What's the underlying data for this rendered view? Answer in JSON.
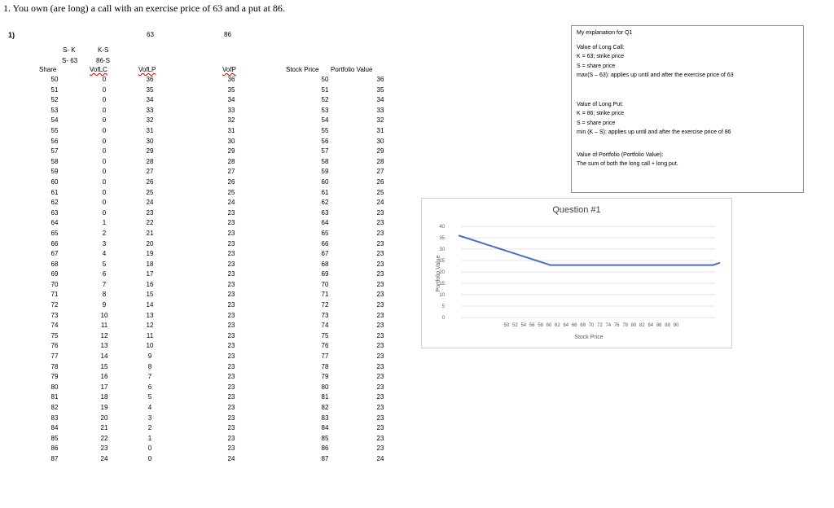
{
  "header": {
    "title": "1. You own (are long) a call with an exercise price of 63 and a put at 86."
  },
  "question_number": "1)",
  "top_values": {
    "call_strike": "63",
    "put_strike": "86"
  },
  "columns": {
    "share": "Share",
    "sk_line1": "S- K",
    "sk_line2": "S- 63",
    "ks_line1": "K-S",
    "ks_line2": "86-S",
    "volc": "VofLC",
    "volp": "VofLP",
    "vofp": "VofP",
    "stock_price": "Stock Price",
    "portfolio_value": "Portfolio Value"
  },
  "table": {
    "share": [
      "50",
      "51",
      "52",
      "53",
      "54",
      "55",
      "56",
      "57",
      "58",
      "59",
      "60",
      "61",
      "62",
      "63",
      "64",
      "65",
      "66",
      "67",
      "68",
      "69",
      "70",
      "71",
      "72",
      "73",
      "74",
      "75",
      "76",
      "77",
      "78",
      "79",
      "80",
      "81",
      "82",
      "83",
      "84",
      "85",
      "86",
      "87"
    ],
    "volc": [
      "0",
      "0",
      "0",
      "0",
      "0",
      "0",
      "0",
      "0",
      "0",
      "0",
      "0",
      "0",
      "0",
      "0",
      "1",
      "2",
      "3",
      "4",
      "5",
      "6",
      "7",
      "8",
      "9",
      "10",
      "11",
      "12",
      "13",
      "14",
      "15",
      "16",
      "17",
      "18",
      "19",
      "20",
      "21",
      "22",
      "23",
      "24"
    ],
    "volp": [
      "36",
      "35",
      "34",
      "33",
      "32",
      "31",
      "30",
      "29",
      "28",
      "27",
      "26",
      "25",
      "24",
      "23",
      "22",
      "21",
      "20",
      "19",
      "18",
      "17",
      "16",
      "15",
      "14",
      "13",
      "12",
      "11",
      "10",
      "9",
      "8",
      "7",
      "6",
      "5",
      "4",
      "3",
      "2",
      "1",
      "0",
      "0"
    ],
    "vofp": [
      "36",
      "35",
      "34",
      "33",
      "32",
      "31",
      "30",
      "29",
      "28",
      "27",
      "26",
      "25",
      "24",
      "23",
      "23",
      "23",
      "23",
      "23",
      "23",
      "23",
      "23",
      "23",
      "23",
      "23",
      "23",
      "23",
      "23",
      "23",
      "23",
      "23",
      "23",
      "23",
      "23",
      "23",
      "23",
      "23",
      "23",
      "24"
    ],
    "stock_price": [
      "50",
      "51",
      "52",
      "53",
      "54",
      "55",
      "56",
      "57",
      "58",
      "59",
      "60",
      "61",
      "62",
      "63",
      "64",
      "65",
      "66",
      "67",
      "68",
      "69",
      "70",
      "71",
      "72",
      "73",
      "74",
      "75",
      "76",
      "77",
      "78",
      "79",
      "80",
      "81",
      "82",
      "83",
      "84",
      "85",
      "86",
      "87"
    ],
    "portfolio_value": [
      "36",
      "35",
      "34",
      "33",
      "32",
      "31",
      "30",
      "29",
      "28",
      "27",
      "26",
      "25",
      "24",
      "23",
      "23",
      "23",
      "23",
      "23",
      "23",
      "23",
      "23",
      "23",
      "23",
      "23",
      "23",
      "23",
      "23",
      "23",
      "23",
      "23",
      "23",
      "23",
      "23",
      "23",
      "23",
      "23",
      "23",
      "24"
    ]
  },
  "explanation": {
    "heading": "My explanation for Q1",
    "call_title": "Value of Long Call:",
    "call_k": "K = 63; strike price",
    "call_s": "S = share price",
    "call_formula": "max(S – 63): applies up until and after the exercise price of 63",
    "put_title": "Value of Long Put:",
    "put_k": "K = 86; strike price",
    "put_s": "S = share price",
    "put_formula": "min (K – S): applies up until and after the exercise price of 86",
    "port_title": "Value of Portfolio (Portfolio Value):",
    "port_desc": "The sum of both the long call + long put."
  },
  "chart_data": {
    "type": "line",
    "title": "Question #1",
    "xlabel": "Stock Price",
    "ylabel": "Portfolio Value",
    "ylim": [
      0,
      40
    ],
    "yticks": [
      0,
      5,
      10,
      15,
      20,
      25,
      30,
      35,
      40
    ],
    "grid": true,
    "line_color": "#4472c4",
    "x": [
      50,
      51,
      52,
      53,
      54,
      55,
      56,
      57,
      58,
      59,
      60,
      61,
      62,
      63,
      64,
      65,
      66,
      67,
      68,
      69,
      70,
      71,
      72,
      73,
      74,
      75,
      76,
      77,
      78,
      79,
      80,
      81,
      82,
      83,
      84,
      85,
      86,
      87
    ],
    "x_tick_labels": [
      "50",
      "52",
      "54",
      "56",
      "58",
      "60",
      "62",
      "64",
      "66",
      "68",
      "70",
      "72",
      "74",
      "76",
      "78",
      "80",
      "82",
      "84",
      "86",
      "88",
      "90"
    ],
    "values": [
      36,
      35,
      34,
      33,
      32,
      31,
      30,
      29,
      28,
      27,
      26,
      25,
      24,
      23,
      23,
      23,
      23,
      23,
      23,
      23,
      23,
      23,
      23,
      23,
      23,
      23,
      23,
      23,
      23,
      23,
      23,
      23,
      23,
      23,
      23,
      23,
      23,
      24
    ]
  }
}
